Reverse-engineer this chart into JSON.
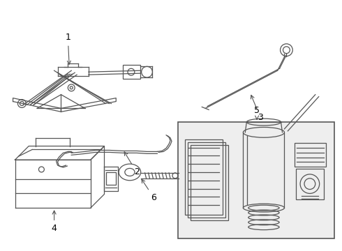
{
  "bg_color": "#ffffff",
  "line_color": "#555555",
  "label_fontsize": 9,
  "fig_width": 4.9,
  "fig_height": 3.6,
  "dpi": 100
}
